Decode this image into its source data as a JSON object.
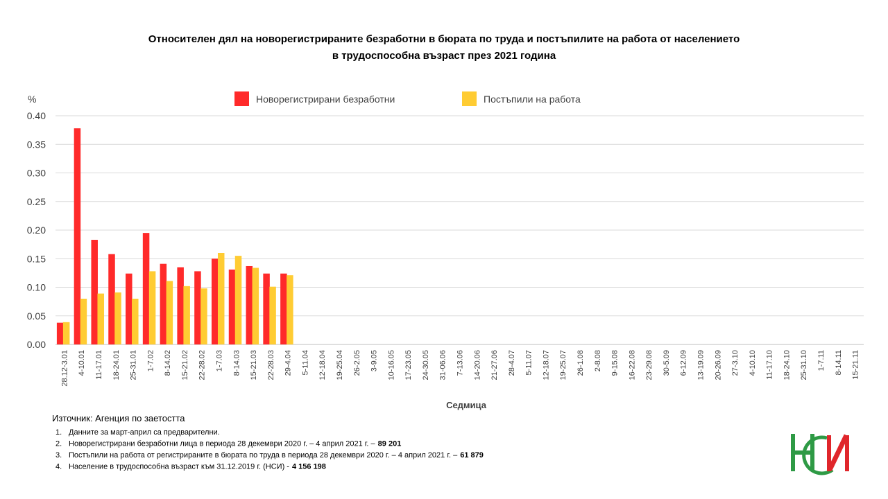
{
  "chart_data": {
    "type": "bar",
    "title": [
      "Относителен дял на новорегистрираните безработни в бюрата по труда и постъпилите на работа от населението",
      "в трудоспособна възраст през 2021 година"
    ],
    "y_unit": "%",
    "xlabel": "Седмица",
    "categories": [
      "28.12-3.01",
      "4-10.01",
      "11-17.01",
      "18-24.01",
      "25-31.01",
      "1-7.02",
      "8-14.02",
      "15-21.02",
      "22-28.02",
      "1-7.03",
      "8-14.03",
      "15-21.03",
      "22-28.03",
      "29-4.04",
      "5-11.04",
      "12-18.04",
      "19-25.04",
      "26-2.05",
      "3-9.05",
      "10-16.05",
      "17-23.05",
      "24-30.05",
      "31-06.06",
      "7-13.06",
      "14-20.06",
      "21-27.06",
      "28-4.07",
      "5-11.07",
      "12-18.07",
      "19-25.07",
      "26-1.08",
      "2-8.08",
      "9-15.08",
      "16-22.08",
      "23-29.08",
      "30-5.09",
      "6-12.09",
      "13-19.09",
      "20-26.09",
      "27-3.10",
      "4-10.10",
      "11-17.10",
      "18-24.10",
      "25-31.10",
      "1-7.11",
      "8-14.11",
      "15-21.11"
    ],
    "series": [
      {
        "name": "Новорегистрирани безработни",
        "color": "#ff2a2a",
        "values": [
          0.038,
          0.378,
          0.183,
          0.158,
          0.124,
          0.195,
          0.141,
          0.135,
          0.128,
          0.15,
          0.131,
          0.137,
          0.124,
          0.124,
          null,
          null,
          null,
          null,
          null,
          null,
          null,
          null,
          null,
          null,
          null,
          null,
          null,
          null,
          null,
          null,
          null,
          null,
          null,
          null,
          null,
          null,
          null,
          null,
          null,
          null,
          null,
          null,
          null,
          null,
          null,
          null,
          null
        ]
      },
      {
        "name": "Постъпили на работа",
        "color": "#ffcc33",
        "values": [
          0.039,
          0.08,
          0.089,
          0.091,
          0.08,
          0.128,
          0.111,
          0.102,
          0.098,
          0.16,
          0.155,
          0.134,
          0.101,
          0.121,
          null,
          null,
          null,
          null,
          null,
          null,
          null,
          null,
          null,
          null,
          null,
          null,
          null,
          null,
          null,
          null,
          null,
          null,
          null,
          null,
          null,
          null,
          null,
          null,
          null,
          null,
          null,
          null,
          null,
          null,
          null,
          null,
          null
        ]
      }
    ],
    "ylim": [
      0,
      0.4
    ],
    "yticks": [
      {
        "value": 0,
        "label": "0.00"
      },
      {
        "value": 0.05,
        "label": "0.05"
      },
      {
        "value": 0.1,
        "label": "0.10"
      },
      {
        "value": 0.15,
        "label": "0.15"
      },
      {
        "value": 0.2,
        "label": "0.20"
      },
      {
        "value": 0.25,
        "label": "0.25"
      },
      {
        "value": 0.3,
        "label": "0.30"
      },
      {
        "value": 0.35,
        "label": "0.35"
      },
      {
        "value": 0.4,
        "label": "0.40"
      }
    ],
    "grid": true
  },
  "source": "Източник: Агенция по заетостта",
  "notes": [
    {
      "number": "1.",
      "text": "Данните за март-април са предварителни.",
      "bold": null
    },
    {
      "number": "2.",
      "text": "Новорегистрирани безработни лица в периода 28 декември 2020 г. – 4 април 2021 г. –",
      "bold": "89 201"
    },
    {
      "number": "3.",
      "text": "Постъпили на работа от регистрираните в бюрата по труда в периода 28 декември 2020 г. – 4 април 2021 г. –",
      "bold": "61 879"
    },
    {
      "number": "4.",
      "text": "Население в трудоспособна възраст към 31.12.2019 г. (НСИ) -",
      "bold": "4 156 198"
    }
  ]
}
